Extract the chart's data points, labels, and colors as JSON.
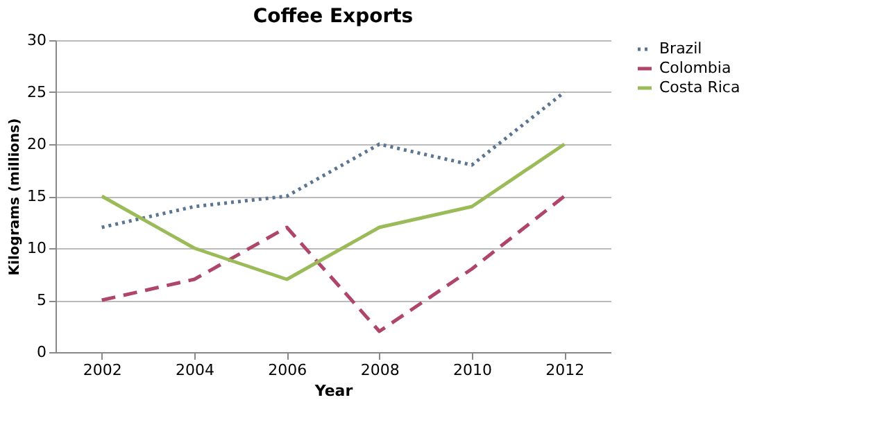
{
  "chart_data": {
    "type": "line",
    "title": "Coffee Exports",
    "xlabel": "Year",
    "ylabel": "Kilograms (millions)",
    "categories": [
      "2002",
      "2004",
      "2006",
      "2008",
      "2010",
      "2012"
    ],
    "series": [
      {
        "name": "Brazil",
        "color": "#5b7590",
        "line_style": "dotted",
        "values": [
          12,
          14,
          15,
          20,
          18,
          25
        ]
      },
      {
        "name": "Colombia",
        "color": "#b0456a",
        "line_style": "dashed",
        "values": [
          5,
          7,
          12,
          2,
          8,
          15
        ]
      },
      {
        "name": "Costa Rica",
        "color": "#9bbb59",
        "line_style": "solid",
        "values": [
          15,
          10,
          7,
          12,
          14,
          20
        ]
      }
    ],
    "ylim": [
      0,
      30
    ],
    "yticks": [
      0,
      5,
      10,
      15,
      20,
      25,
      30
    ],
    "grid": "y",
    "legend": "right",
    "marker": "none"
  }
}
